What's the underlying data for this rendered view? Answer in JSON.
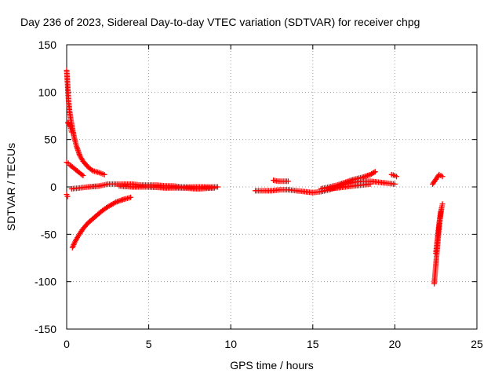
{
  "chart_data": {
    "type": "scatter",
    "title": "Day 236 of 2023, Sidereal Day-to-day VTEC variation (SDTVAR) for receiver chpg",
    "xlabel": "GPS time / hours",
    "ylabel": "SDTVAR / TECUs",
    "xlim": [
      0,
      25
    ],
    "ylim": [
      -150,
      150
    ],
    "xticks": [
      0,
      5,
      10,
      15,
      20,
      25
    ],
    "yticks": [
      -150,
      -100,
      -50,
      0,
      50,
      100,
      150
    ],
    "grid": true,
    "marker": "+",
    "series_color": "#ff0000",
    "segments": [
      {
        "name": "upper-decay",
        "x": [
          0.0,
          0.02,
          0.05,
          0.08,
          0.12,
          0.18,
          0.25,
          0.35,
          0.45,
          0.6,
          0.8,
          1.0,
          1.3,
          1.6,
          2.0,
          2.3
        ],
        "y": [
          123,
          118,
          110,
          100,
          90,
          80,
          72,
          62,
          53,
          43,
          33,
          27,
          21,
          17,
          15,
          13
        ]
      },
      {
        "name": "spike-6",
        "x": [
          0.08,
          0.1,
          0.15,
          0.2,
          0.25,
          0.3
        ],
        "y": [
          68,
          67,
          66,
          65,
          62,
          58
        ]
      },
      {
        "name": "upper-branch-2",
        "x": [
          0.0,
          0.1,
          0.2,
          0.35,
          0.5,
          0.7,
          0.85,
          1.0
        ],
        "y": [
          26,
          25,
          23,
          21,
          19,
          16,
          14,
          12
        ]
      },
      {
        "name": "lower-rise",
        "x": [
          0.35,
          0.5,
          0.7,
          1.0,
          1.3,
          1.7,
          2.1,
          2.5,
          3.0,
          3.5,
          3.9
        ],
        "y": [
          -64,
          -58,
          -52,
          -44,
          -38,
          -32,
          -26,
          -21,
          -16,
          -13,
          -11
        ]
      },
      {
        "name": "low-points",
        "x": [
          0.0,
          0.05
        ],
        "y": [
          -8,
          -10
        ]
      },
      {
        "name": "near-zero-1",
        "x": [
          0.3,
          0.8,
          1.3,
          2.0,
          2.5,
          3.0,
          3.5,
          4.0,
          4.5,
          5.0,
          5.5,
          6.0,
          6.5,
          7.0,
          7.5,
          8.0,
          8.5,
          9.0,
          9.2
        ],
        "y": [
          -2,
          -1,
          0,
          1,
          3,
          3,
          3,
          3,
          2,
          2,
          2,
          1,
          1,
          0,
          0,
          0,
          0,
          0,
          0
        ]
      },
      {
        "name": "near-zero-1b",
        "x": [
          3.2,
          4.0,
          5.0,
          6.0,
          7.0,
          8.0,
          9.0
        ],
        "y": [
          1,
          0,
          0,
          -1,
          -1,
          -2,
          -1
        ]
      },
      {
        "name": "mid-gap",
        "x": [
          12.6,
          12.9,
          13.2,
          13.5
        ],
        "y": [
          7,
          6,
          6,
          6
        ]
      },
      {
        "name": "near-zero-2",
        "x": [
          11.5,
          12.0,
          12.5,
          13.0,
          13.5,
          14.0,
          14.5,
          15.0,
          15.5,
          16.0,
          16.5,
          17.0,
          17.5,
          18.0,
          18.5,
          19.0,
          19.5,
          20.0
        ],
        "y": [
          -4,
          -4,
          -4,
          -3,
          -3,
          -4,
          -5,
          -6,
          -5,
          -3,
          0,
          3,
          5,
          6,
          6,
          5,
          4,
          3
        ]
      },
      {
        "name": "near-zero-2b",
        "x": [
          15.5,
          16.0,
          16.5,
          17.0,
          17.5,
          18.0,
          18.5,
          18.8
        ],
        "y": [
          -2,
          0,
          2,
          5,
          8,
          10,
          13,
          16
        ]
      },
      {
        "name": "near-zero-2c",
        "x": [
          16.0,
          16.5,
          17.0,
          17.5,
          18.0,
          18.5
        ],
        "y": [
          -2,
          -1,
          0,
          1,
          2,
          3
        ]
      },
      {
        "name": "right-pair",
        "x": [
          19.8,
          20.0,
          20.1
        ],
        "y": [
          13,
          12,
          11
        ]
      },
      {
        "name": "tail-top",
        "x": [
          22.3,
          22.5,
          22.7,
          22.9
        ],
        "y": [
          3,
          8,
          13,
          11
        ]
      },
      {
        "name": "tail-drop",
        "x": [
          22.4,
          22.45,
          22.5,
          22.55,
          22.6,
          22.65,
          22.7,
          22.75,
          22.8,
          22.85,
          22.9
        ],
        "y": [
          -102,
          -92,
          -82,
          -72,
          -62,
          -52,
          -42,
          -35,
          -28,
          -22,
          -18
        ]
      },
      {
        "name": "tail-drop-2",
        "x": [
          22.5,
          22.55,
          22.6,
          22.65,
          22.7,
          22.75,
          22.8
        ],
        "y": [
          -70,
          -62,
          -54,
          -46,
          -38,
          -32,
          -26
        ]
      }
    ]
  }
}
